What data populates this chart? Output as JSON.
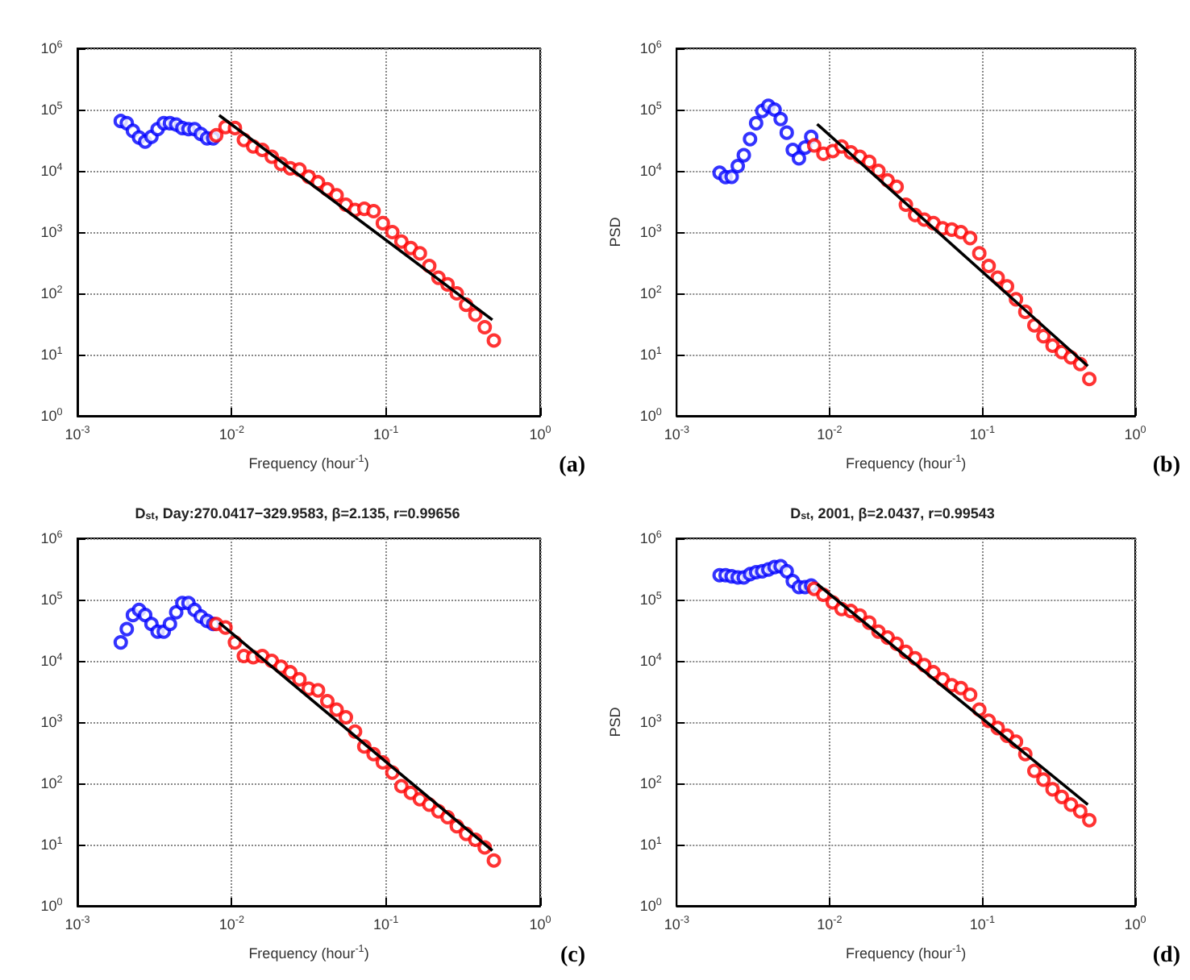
{
  "chart_data": [
    {
      "type": "scatter",
      "xlabel": "Frequency (hour$^{-1}$)",
      "xlim": [
        0.001,
        1
      ],
      "ylim": [
        1,
        1000000
      ],
      "log": "xy",
      "grid": true,
      "marker": "circle",
      "annotations": [
        "(a)"
      ],
      "xticks": [
        {
          "value": 0.001,
          "label": "10$^{-3}$"
        },
        {
          "value": 0.01,
          "label": "10$^{-2}$"
        },
        {
          "value": 0.1,
          "label": "10$^{-1}$"
        },
        {
          "value": 1,
          "label": "10$^{0}$"
        }
      ],
      "yticks": [
        {
          "value": 1,
          "label": "10$^{0}$"
        },
        {
          "value": 10,
          "label": "10$^{1}$"
        },
        {
          "value": 100,
          "label": "10$^{2}$"
        },
        {
          "value": 1000,
          "label": "10$^{3}$"
        },
        {
          "value": 10000,
          "label": "10$^{4}$"
        },
        {
          "value": 100000,
          "label": "10$^{5}$"
        },
        {
          "value": 1000000,
          "label": "10$^{6}$"
        }
      ],
      "series": [
        {
          "color": "#0000ff",
          "x": [
            0.00191,
            0.00209,
            0.00229,
            0.00251,
            0.00275,
            0.00302,
            0.00331,
            0.00363,
            0.00398,
            0.00437,
            0.00479,
            0.00525,
            0.00575,
            0.00631,
            0.00692,
            0.00759
          ],
          "values": [
            65000,
            60000,
            45000,
            35000,
            30000,
            36000,
            48000,
            60000,
            60000,
            57000,
            50000,
            48000,
            48000,
            40000,
            34000,
            34000
          ]
        },
        {
          "color": "#ff0000",
          "x": [
            0.00794,
            0.00912,
            0.0105,
            0.012,
            0.0138,
            0.0158,
            0.0182,
            0.0209,
            0.024,
            0.0275,
            0.0316,
            0.0363,
            0.0417,
            0.0479,
            0.055,
            0.0631,
            0.0724,
            0.0832,
            0.0955,
            0.11,
            0.126,
            0.145,
            0.166,
            0.191,
            0.219,
            0.251,
            0.288,
            0.331,
            0.38,
            0.437,
            0.501
          ],
          "values": [
            38000,
            52000,
            50000,
            32000,
            25000,
            22000,
            17000,
            13000,
            11000,
            10500,
            8000,
            6500,
            5000,
            4000,
            2800,
            2300,
            2400,
            2200,
            1400,
            1000,
            700,
            550,
            450,
            280,
            180,
            140,
            100,
            65,
            45,
            28,
            17
          ]
        },
        {
          "type": "line",
          "color": "#000000",
          "marker": "none",
          "x": [
            0.0083,
            0.49
          ],
          "values": [
            81000,
            37
          ]
        }
      ]
    },
    {
      "type": "scatter",
      "xlabel": "Frequency (hour$^{-1}$)",
      "ylabel": "PSD",
      "xlim": [
        0.001,
        1
      ],
      "ylim": [
        1,
        1000000
      ],
      "log": "xy",
      "grid": true,
      "marker": "circle",
      "annotations": [
        "(b)"
      ],
      "xticks": [
        {
          "value": 0.001,
          "label": "10$^{-3}$"
        },
        {
          "value": 0.01,
          "label": "10$^{-2}$"
        },
        {
          "value": 0.1,
          "label": "10$^{-1}$"
        },
        {
          "value": 1,
          "label": "10$^{0}$"
        }
      ],
      "yticks": [
        {
          "value": 1,
          "label": "10$^{0}$"
        },
        {
          "value": 10,
          "label": "10$^{1}$"
        },
        {
          "value": 100,
          "label": "10$^{2}$"
        },
        {
          "value": 1000,
          "label": "10$^{3}$"
        },
        {
          "value": 10000,
          "label": "10$^{4}$"
        },
        {
          "value": 100000,
          "label": "10$^{5}$"
        },
        {
          "value": 1000000,
          "label": "10$^{6}$"
        }
      ],
      "series": [
        {
          "color": "#0000ff",
          "x": [
            0.00191,
            0.00209,
            0.00229,
            0.00251,
            0.00275,
            0.00302,
            0.00331,
            0.00363,
            0.00398,
            0.00437,
            0.00479,
            0.00525,
            0.00575,
            0.00631,
            0.00692,
            0.00759
          ],
          "values": [
            9300,
            7900,
            8000,
            12000,
            18000,
            33000,
            60000,
            95000,
            115000,
            100000,
            70000,
            42000,
            22000,
            16000,
            24000,
            36000
          ]
        },
        {
          "color": "#ff0000",
          "x": [
            0.00794,
            0.00912,
            0.0105,
            0.012,
            0.0138,
            0.0158,
            0.0182,
            0.0209,
            0.024,
            0.0275,
            0.0316,
            0.0363,
            0.0417,
            0.0479,
            0.055,
            0.0631,
            0.0724,
            0.0832,
            0.0955,
            0.11,
            0.126,
            0.145,
            0.166,
            0.191,
            0.219,
            0.251,
            0.288,
            0.331,
            0.38,
            0.437,
            0.501
          ],
          "values": [
            26000,
            19000,
            21000,
            25000,
            20000,
            17000,
            14000,
            10000,
            7000,
            5500,
            2800,
            1900,
            1600,
            1400,
            1150,
            1100,
            1000,
            800,
            450,
            280,
            180,
            130,
            80,
            50,
            30,
            20,
            14,
            11,
            9,
            7,
            4
          ]
        },
        {
          "type": "line",
          "color": "#000000",
          "marker": "none",
          "x": [
            0.0083,
            0.49
          ],
          "values": [
            58000,
            6.5
          ]
        }
      ]
    },
    {
      "type": "scatter",
      "title": "D$_{st}$, Day:270.0417−329.9583, β=2.135, r=0.99656",
      "xlabel": "Frequency (hour$^{-1}$)",
      "xlim": [
        0.001,
        1
      ],
      "ylim": [
        1,
        1000000
      ],
      "log": "xy",
      "grid": true,
      "marker": "circle",
      "annotations": [
        "(c)"
      ],
      "xticks": [
        {
          "value": 0.001,
          "label": "10$^{-3}$"
        },
        {
          "value": 0.01,
          "label": "10$^{-2}$"
        },
        {
          "value": 0.1,
          "label": "10$^{-1}$"
        },
        {
          "value": 1,
          "label": "10$^{0}$"
        }
      ],
      "yticks": [
        {
          "value": 1,
          "label": "10$^{0}$"
        },
        {
          "value": 10,
          "label": "10$^{1}$"
        },
        {
          "value": 100,
          "label": "10$^{2}$"
        },
        {
          "value": 1000,
          "label": "10$^{3}$"
        },
        {
          "value": 10000,
          "label": "10$^{4}$"
        },
        {
          "value": 100000,
          "label": "10$^{5}$"
        },
        {
          "value": 1000000,
          "label": "10$^{6}$"
        }
      ],
      "series": [
        {
          "color": "#0000ff",
          "x": [
            0.00191,
            0.00209,
            0.00229,
            0.00251,
            0.00275,
            0.00302,
            0.00331,
            0.00363,
            0.00398,
            0.00437,
            0.00479,
            0.00525,
            0.00575,
            0.00631,
            0.00692,
            0.00759
          ],
          "values": [
            20000,
            33000,
            56000,
            68000,
            56000,
            40000,
            30000,
            30000,
            40000,
            62000,
            88000,
            88000,
            68000,
            53000,
            45000,
            40000
          ]
        },
        {
          "color": "#ff0000",
          "x": [
            0.00794,
            0.00912,
            0.0105,
            0.012,
            0.0138,
            0.0158,
            0.0182,
            0.0209,
            0.024,
            0.0275,
            0.0316,
            0.0363,
            0.0417,
            0.0479,
            0.055,
            0.0631,
            0.0724,
            0.0832,
            0.0955,
            0.11,
            0.126,
            0.145,
            0.166,
            0.191,
            0.219,
            0.251,
            0.288,
            0.331,
            0.38,
            0.437,
            0.501
          ],
          "values": [
            40000,
            35000,
            20000,
            12000,
            11500,
            12000,
            10000,
            8000,
            6500,
            5000,
            3500,
            3300,
            2200,
            1600,
            1200,
            700,
            400,
            300,
            220,
            150,
            90,
            70,
            55,
            45,
            35,
            28,
            20,
            15,
            12,
            9,
            5.5
          ]
        },
        {
          "type": "line",
          "color": "#000000",
          "marker": "none",
          "x": [
            0.0083,
            0.49
          ],
          "values": [
            42000,
            8
          ]
        }
      ]
    },
    {
      "type": "scatter",
      "title": "D$_{st}$, 2001, β=2.0437, r=0.99543",
      "xlabel": "Frequency (hour$^{-1}$)",
      "ylabel": "PSD",
      "xlim": [
        0.001,
        1
      ],
      "ylim": [
        1,
        1000000
      ],
      "log": "xy",
      "grid": true,
      "marker": "circle",
      "annotations": [
        "(d)"
      ],
      "xticks": [
        {
          "value": 0.001,
          "label": "10$^{-3}$"
        },
        {
          "value": 0.01,
          "label": "10$^{-2}$"
        },
        {
          "value": 0.1,
          "label": "10$^{-1}$"
        },
        {
          "value": 1,
          "label": "10$^{0}$"
        }
      ],
      "yticks": [
        {
          "value": 1,
          "label": "10$^{0}$"
        },
        {
          "value": 10,
          "label": "10$^{1}$"
        },
        {
          "value": 100,
          "label": "10$^{2}$"
        },
        {
          "value": 1000,
          "label": "10$^{3}$"
        },
        {
          "value": 10000,
          "label": "10$^{4}$"
        },
        {
          "value": 100000,
          "label": "10$^{5}$"
        },
        {
          "value": 1000000,
          "label": "10$^{6}$"
        }
      ],
      "series": [
        {
          "color": "#0000ff",
          "x": [
            0.00191,
            0.00209,
            0.00229,
            0.00251,
            0.00275,
            0.00302,
            0.00331,
            0.00363,
            0.00398,
            0.00437,
            0.00479,
            0.00525,
            0.00575,
            0.00631,
            0.00692,
            0.00759
          ],
          "values": [
            250000,
            250000,
            240000,
            230000,
            230000,
            260000,
            280000,
            290000,
            310000,
            340000,
            350000,
            290000,
            200000,
            160000,
            160000,
            170000
          ]
        },
        {
          "color": "#ff0000",
          "x": [
            0.00794,
            0.00912,
            0.0105,
            0.012,
            0.0138,
            0.0158,
            0.0182,
            0.0209,
            0.024,
            0.0275,
            0.0316,
            0.0363,
            0.0417,
            0.0479,
            0.055,
            0.0631,
            0.0724,
            0.0832,
            0.0955,
            0.11,
            0.126,
            0.145,
            0.166,
            0.191,
            0.219,
            0.251,
            0.288,
            0.331,
            0.38,
            0.437,
            0.501
          ],
          "values": [
            150000,
            120000,
            90000,
            70000,
            65000,
            55000,
            42000,
            30000,
            24000,
            19000,
            14000,
            11000,
            8500,
            6500,
            5000,
            4000,
            3600,
            2800,
            1600,
            1050,
            800,
            600,
            480,
            300,
            160,
            115,
            80,
            60,
            45,
            35,
            25
          ]
        },
        {
          "type": "line",
          "color": "#000000",
          "marker": "none",
          "x": [
            0.0083,
            0.49
          ],
          "values": [
            180000,
            45
          ]
        }
      ]
    }
  ]
}
